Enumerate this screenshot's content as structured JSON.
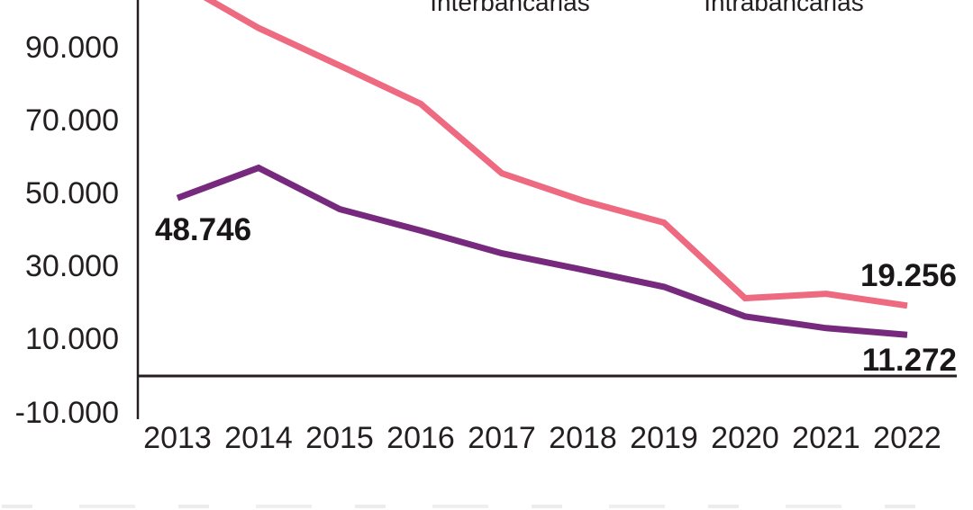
{
  "chart_data": {
    "type": "line",
    "title": "",
    "xlabel": "",
    "ylabel": "",
    "grid": false,
    "legend_position": "top (swatches clipped out of frame)",
    "ylim": [
      -10000,
      103000
    ],
    "xticks": [
      "2013",
      "2014",
      "2015",
      "2016",
      "2017",
      "2018",
      "2019",
      "2020",
      "2021",
      "2022"
    ],
    "yticks": [
      {
        "value": 90000,
        "label": "90.000"
      },
      {
        "value": 70000,
        "label": "70.000"
      },
      {
        "value": 50000,
        "label": "50.000"
      },
      {
        "value": 30000,
        "label": "30.000"
      },
      {
        "value": 10000,
        "label": "10.000"
      },
      {
        "value": -10000,
        "label": "-10.000"
      }
    ],
    "series": [
      {
        "name": "Interbancarias",
        "color": "#ee6a80",
        "values": [
          108000,
          95300,
          85000,
          74500,
          55500,
          48000,
          42000,
          21300,
          22500,
          19256
        ]
      },
      {
        "name": "Intrabancarias",
        "color": "#76297d",
        "values": [
          48746,
          57000,
          45700,
          39800,
          33600,
          29100,
          24400,
          16300,
          13100,
          11272
        ]
      }
    ],
    "annotations": [
      {
        "text": "48.746",
        "series": "Intrabancarias",
        "year": "2013",
        "value": 48746
      },
      {
        "text": "19.256",
        "series": "Interbancarias",
        "year": "2022",
        "value": 19256
      },
      {
        "text": "11.272",
        "series": "Intrabancarias",
        "year": "2022",
        "value": 11272
      }
    ],
    "axis_color": "#231f20"
  }
}
